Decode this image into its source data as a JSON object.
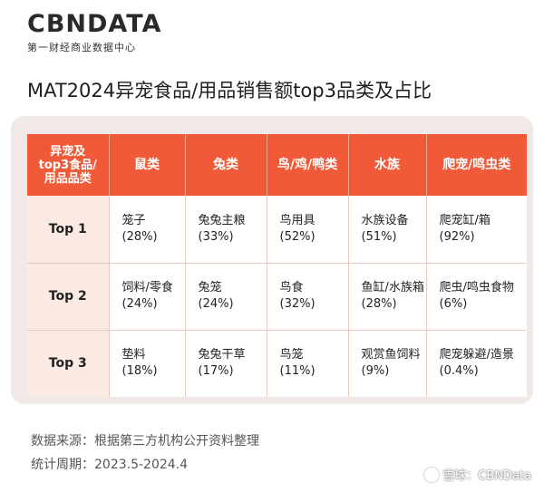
{
  "brand": {
    "logo": "CBNDATA",
    "tagline": "第一财经商业数据中心"
  },
  "title": "MAT2024异宠食品/用品销售额top3品类及占比",
  "table": {
    "corner": [
      "异宠及",
      "top3食品/",
      "用品品类"
    ],
    "columns": [
      "鼠类",
      "兔类",
      "鸟/鸡/鸭类",
      "水族",
      "爬宠/鸣虫类"
    ],
    "rows": [
      {
        "label": "Top 1",
        "cells": [
          {
            "name": "笼子",
            "pct": "(28%)"
          },
          {
            "name": "兔兔主粮",
            "pct": "(33%)"
          },
          {
            "name": "鸟用具",
            "pct": "(52%)"
          },
          {
            "name": "水族设备",
            "pct": "(51%)"
          },
          {
            "name": "爬宠缸/箱",
            "pct": "(92%)"
          }
        ]
      },
      {
        "label": "Top 2",
        "cells": [
          {
            "name": "饲料/零食",
            "pct": "(24%)"
          },
          {
            "name": "兔笼",
            "pct": "(24%)"
          },
          {
            "name": "鸟食",
            "pct": "(32%)"
          },
          {
            "name": "鱼缸/水族箱",
            "pct": "(28%)"
          },
          {
            "name": "爬虫/鸣虫食物",
            "pct": "(6%)"
          }
        ]
      },
      {
        "label": "Top 3",
        "cells": [
          {
            "name": "垫料",
            "pct": "(18%)"
          },
          {
            "name": "兔兔干草",
            "pct": "(17%)"
          },
          {
            "name": "鸟笼",
            "pct": "(11%)"
          },
          {
            "name": "观赏鱼饲料",
            "pct": "(9%)"
          },
          {
            "name": "爬宠躲避/造景",
            "pct": "(0.4%)"
          }
        ]
      }
    ]
  },
  "footer": {
    "source": "数据来源：根据第三方机构公开资料整理",
    "period": "统计周期：2023.5-2024.4"
  },
  "watermark": "雪球：CBNData",
  "colors": {
    "header_bg": "#f05a38",
    "rowhead_bg": "#fbe9e3",
    "card_bg": "#f1e9e6"
  }
}
